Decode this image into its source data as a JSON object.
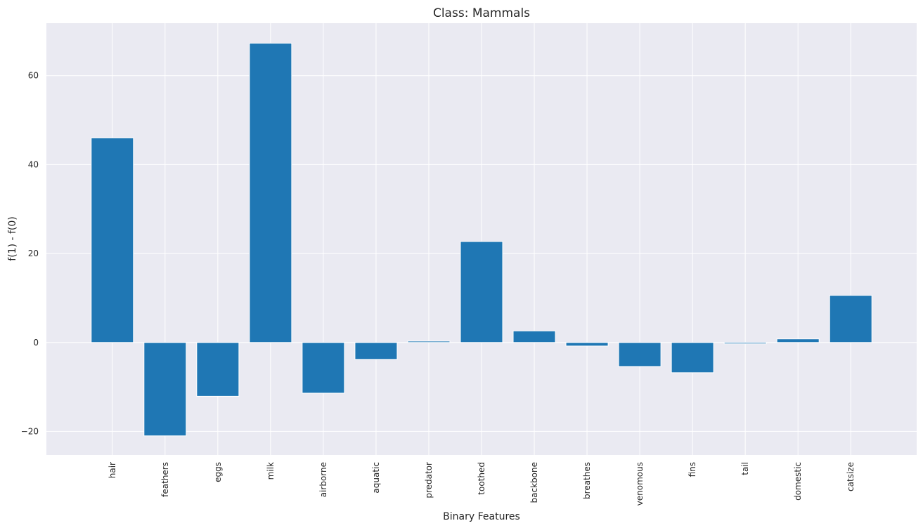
{
  "chart_data": {
    "type": "bar",
    "title": "Class: Mammals",
    "xlabel": "Binary Features",
    "ylabel": "f(1) - f(0)",
    "categories": [
      "hair",
      "feathers",
      "eggs",
      "milk",
      "airborne",
      "aquatic",
      "predator",
      "toothed",
      "backbone",
      "breathes",
      "venomous",
      "fins",
      "tail",
      "domestic",
      "catsize"
    ],
    "values": [
      46.0,
      -21.0,
      -12.1,
      67.3,
      -11.4,
      -3.8,
      0.3,
      22.7,
      2.6,
      -0.8,
      -5.4,
      -6.8,
      -0.3,
      0.8,
      10.6
    ],
    "ylim": [
      -25.3,
      71.8
    ],
    "yticks": [
      -20,
      0,
      20,
      40,
      60
    ],
    "ytick_labels": [
      "−20",
      "0",
      "20",
      "40",
      "60"
    ],
    "grid": true,
    "colors": {
      "bar": "#1f77b4",
      "background": "#eaeaf2",
      "grid": "#ffffff"
    }
  }
}
